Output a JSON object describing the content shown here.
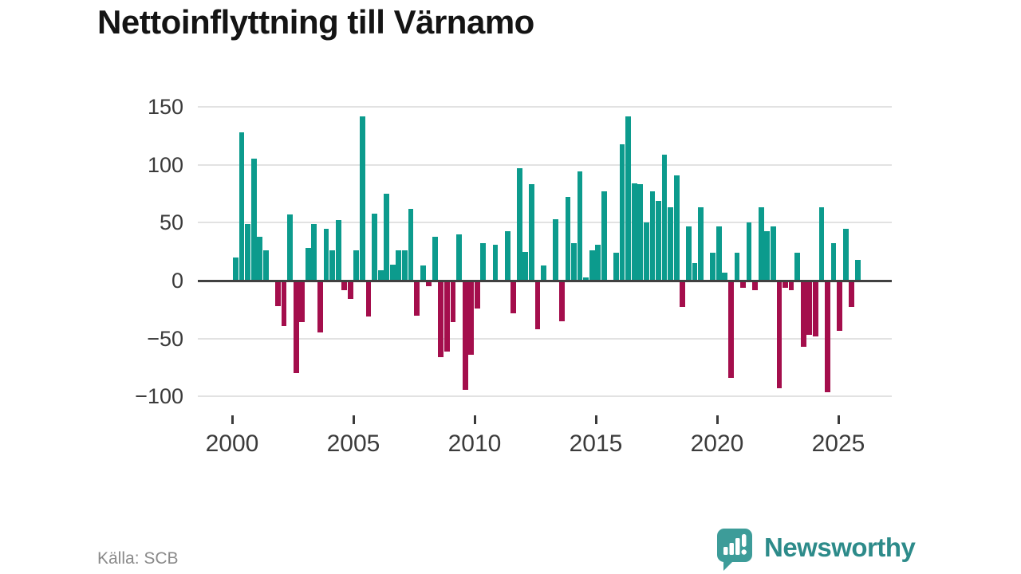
{
  "title": "Nettoinflyttning till Värnamo",
  "source": "Källa: SCB",
  "branding": {
    "name": "Newsworthy",
    "icon": "bar-chart-speech-bubble-icon",
    "icon_color": "#3d9c99",
    "text_color": "#2d8b8a"
  },
  "colors": {
    "positive_bar": "#0c9b8d",
    "negative_bar": "#a40e4c",
    "gridline": "#e2e2e2",
    "zero_axis": "#404040",
    "axis_text": "#3b3b3b",
    "title_text": "#141414",
    "source_text": "#8a8a8a"
  },
  "chart_data": {
    "type": "bar",
    "title": "Nettoinflyttning till Värnamo",
    "xlabel": "",
    "ylabel": "",
    "grid": true,
    "legend": "none",
    "frequency": "quarterly",
    "start_period": "2000Q1",
    "end_period": "2025Q4",
    "ylim": [
      -110,
      158
    ],
    "y_ticks": [
      {
        "value": 150,
        "label": "150"
      },
      {
        "value": 100,
        "label": "100"
      },
      {
        "value": 50,
        "label": "50"
      },
      {
        "value": 0,
        "label": "0"
      },
      {
        "value": -50,
        "label": "−50"
      },
      {
        "value": -100,
        "label": "−100"
      }
    ],
    "x_ticks": [
      "2000",
      "2005",
      "2010",
      "2015",
      "2020",
      "2025"
    ],
    "values": [
      20,
      128,
      49,
      105,
      38,
      26,
      0,
      -21,
      -38,
      57,
      -79,
      -35,
      28,
      49,
      -44,
      45,
      26,
      52,
      -7,
      -15,
      26,
      142,
      -30,
      58,
      9,
      75,
      14,
      26,
      26,
      62,
      -29,
      13,
      -4,
      38,
      -65,
      -60,
      -35,
      40,
      -93,
      -63,
      -23,
      32,
      0,
      31,
      0,
      43,
      -27,
      97,
      25,
      83,
      -41,
      13,
      0,
      53,
      -34,
      72,
      32,
      94,
      3,
      26,
      31,
      77,
      0,
      24,
      118,
      142,
      84,
      83,
      50,
      77,
      69,
      109,
      63,
      91,
      -22,
      47,
      15,
      63,
      0,
      24,
      47,
      7,
      -83,
      24,
      -5,
      50,
      -7,
      63,
      43,
      47,
      -92,
      -5,
      -7,
      24,
      -56,
      -46,
      -47,
      63,
      -95,
      32,
      -42,
      45,
      -22,
      18
    ]
  }
}
